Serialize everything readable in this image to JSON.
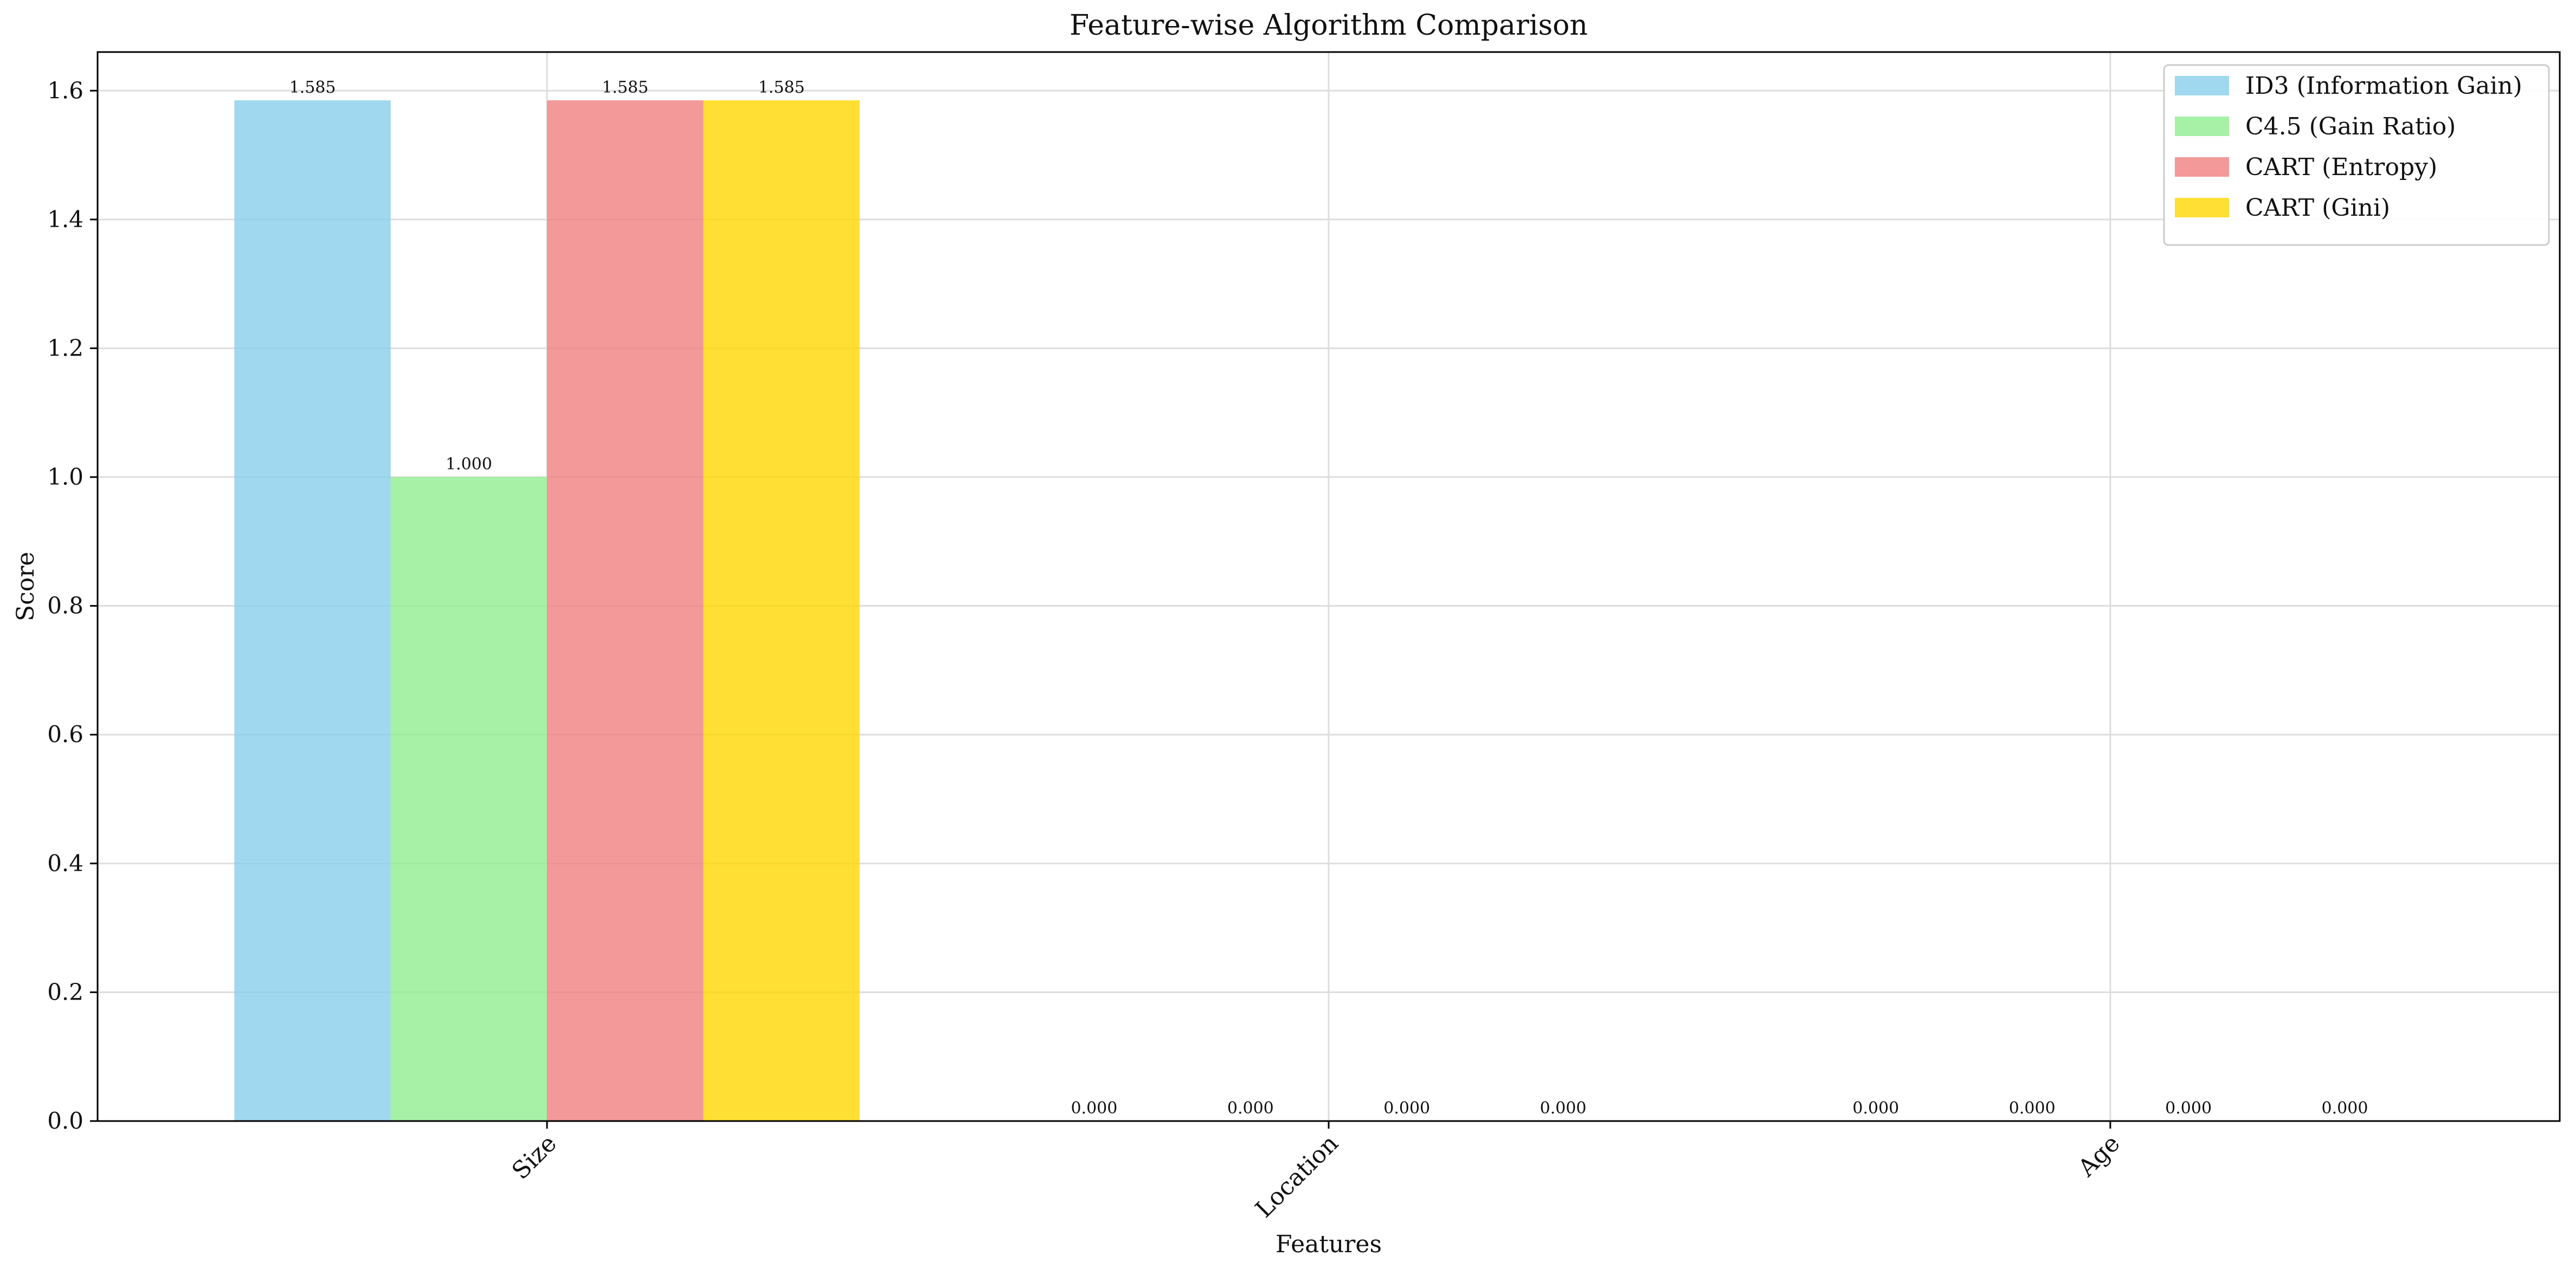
{
  "chart_data": {
    "type": "bar",
    "title": "Feature-wise Algorithm Comparison",
    "xlabel": "Features",
    "ylabel": "Score",
    "categories": [
      "Size",
      "Location",
      "Age"
    ],
    "ylim": [
      0,
      1.66
    ],
    "yticks": [
      0.0,
      0.2,
      0.4,
      0.6,
      0.8,
      1.0,
      1.2,
      1.4,
      1.6
    ],
    "ytick_labels": [
      "0.0",
      "0.2",
      "0.4",
      "0.6",
      "0.8",
      "1.0",
      "1.2",
      "1.4",
      "1.6"
    ],
    "grid": true,
    "legend_position": "top-right",
    "series": [
      {
        "name": "ID3 (Information Gain)",
        "color": "#87CEEB",
        "values": [
          1.585,
          0.0,
          0.0
        ],
        "labels": [
          "1.585",
          "0.000",
          "0.000"
        ]
      },
      {
        "name": "C4.5 (Gain Ratio)",
        "color": "#90EE90",
        "values": [
          1.0,
          0.0,
          0.0
        ],
        "labels": [
          "1.000",
          "0.000",
          "0.000"
        ]
      },
      {
        "name": "CART (Entropy)",
        "color": "#F08080",
        "values": [
          1.585,
          0.0,
          0.0
        ],
        "labels": [
          "1.585",
          "0.000",
          "0.000"
        ]
      },
      {
        "name": "CART (Gini)",
        "color": "#FFD700",
        "values": [
          1.585,
          0.0,
          0.0
        ],
        "labels": [
          "1.585",
          "0.000",
          "0.000"
        ]
      }
    ]
  }
}
